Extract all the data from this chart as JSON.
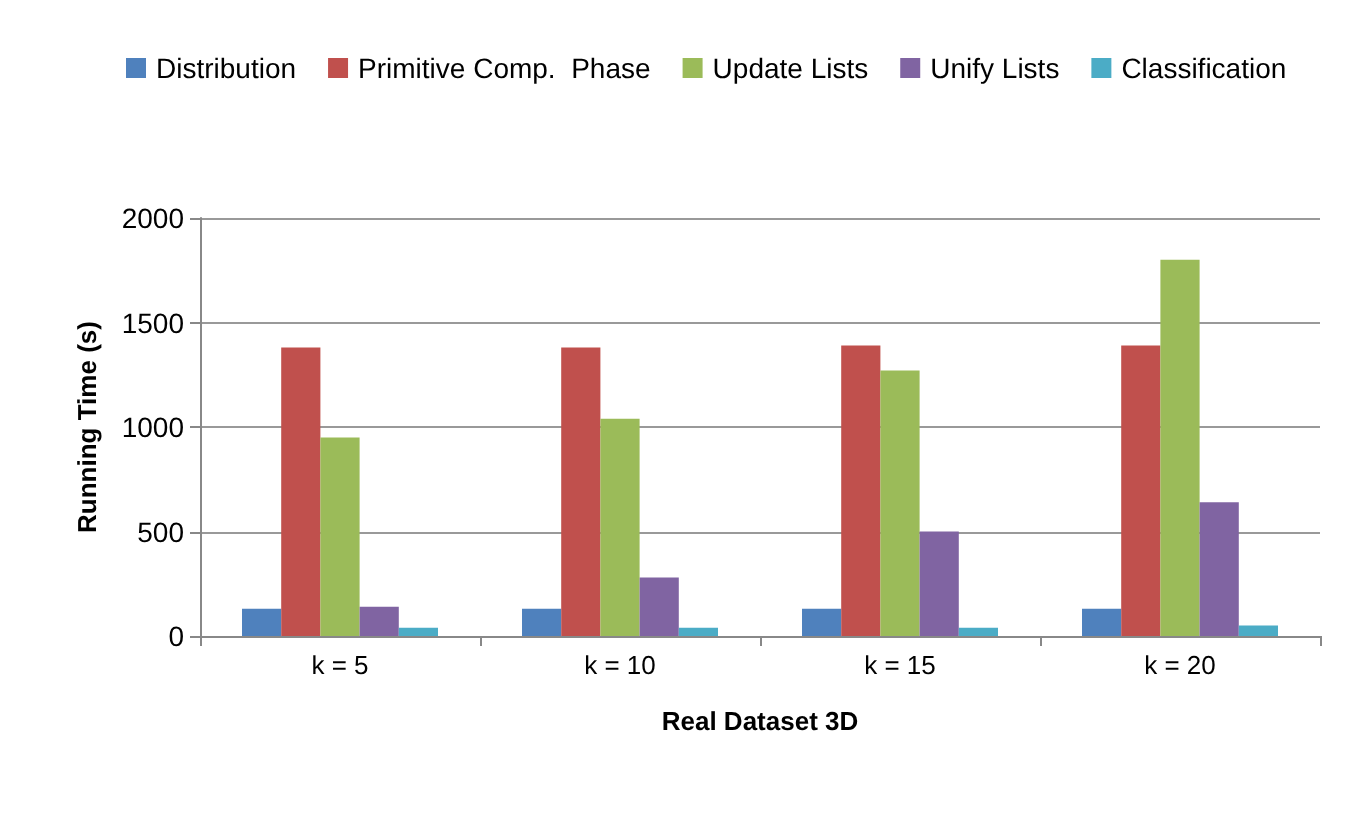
{
  "chart_data": {
    "type": "bar",
    "xlabel": "Real Dataset 3D",
    "ylabel": "Running Time (s)",
    "categories": [
      "k = 5",
      "k = 10",
      "k = 15",
      "k = 20"
    ],
    "series": [
      {
        "name": "Distribution",
        "color": "#4f81bd",
        "values": [
          130,
          130,
          130,
          130
        ]
      },
      {
        "name": "Primitive Comp.  Phase",
        "color": "#c0504d",
        "values": [
          1380,
          1380,
          1390,
          1390
        ]
      },
      {
        "name": "Update Lists",
        "color": "#9bbb59",
        "values": [
          950,
          1040,
          1270,
          1800
        ]
      },
      {
        "name": "Unify Lists",
        "color": "#8064a2",
        "values": [
          140,
          280,
          500,
          640
        ]
      },
      {
        "name": "Classification",
        "color": "#4bacc6",
        "values": [
          40,
          40,
          40,
          50
        ]
      }
    ],
    "ylim": [
      0,
      2000
    ],
    "yticks": [
      0,
      500,
      1000,
      1500,
      2000
    ],
    "grid": "y",
    "legend": "top"
  }
}
